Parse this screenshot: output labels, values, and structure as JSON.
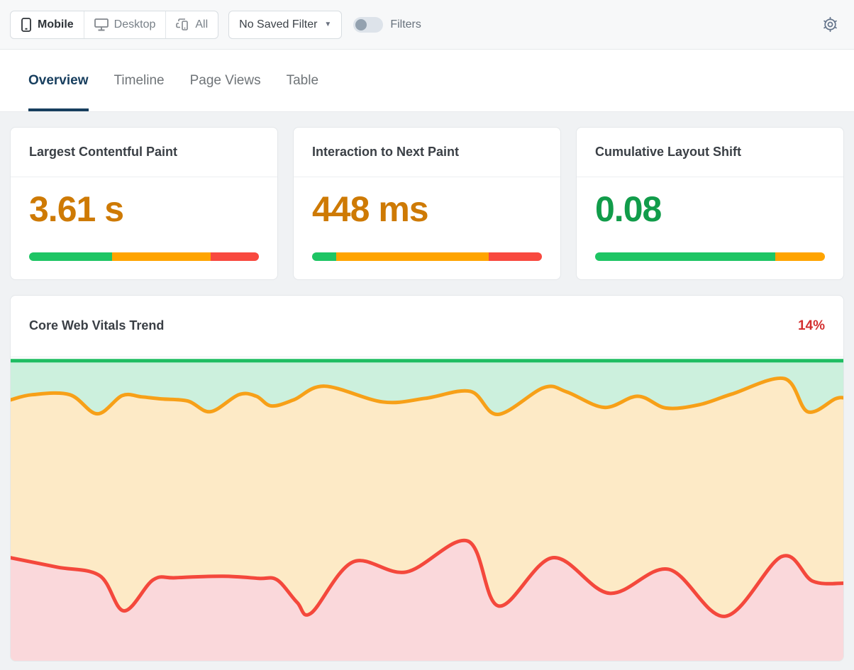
{
  "topbar": {
    "device_tabs": [
      {
        "label": "Mobile",
        "icon": "phone-icon",
        "active": true
      },
      {
        "label": "Desktop",
        "icon": "desktop-icon",
        "active": false
      },
      {
        "label": "All",
        "icon": "devices-icon",
        "active": false
      }
    ],
    "saved_filter": {
      "label": "No Saved Filter",
      "caret": "▼"
    },
    "filters_toggle": {
      "label": "Filters",
      "state": "off"
    },
    "settings_icon": "gear-icon"
  },
  "tabs": [
    {
      "label": "Overview",
      "active": true
    },
    {
      "label": "Timeline",
      "active": false
    },
    {
      "label": "Page Views",
      "active": false
    },
    {
      "label": "Table",
      "active": false
    }
  ],
  "threshold_colors": {
    "good": "#1ec564",
    "needs_improvement": "#ffa400",
    "poor": "#f8493f"
  },
  "metric_cards": [
    {
      "title": "Largest Contentful Paint",
      "value": "3.61 s",
      "value_color": "#ce7a04",
      "bar": {
        "good": 36,
        "needs_improvement": 43,
        "poor": 21
      }
    },
    {
      "title": "Interaction to Next Paint",
      "value": "448 ms",
      "value_color": "#ce7a04",
      "bar": {
        "good": 10.5,
        "needs_improvement": 66.5,
        "poor": 23
      }
    },
    {
      "title": "Cumulative Layout Shift",
      "value": "0.08",
      "value_color": "#119c4a",
      "bar": {
        "good": 78.5,
        "needs_improvement": 21.5,
        "poor": 0
      }
    }
  ],
  "trend_card": {
    "title": "Core Web Vitals Trend",
    "badge": "14%",
    "badge_color": "#d32f2f"
  },
  "chart_data": {
    "type": "area",
    "title": "Core Web Vitals Trend",
    "stacked": true,
    "grid": false,
    "legend": false,
    "x_axis": {
      "visible": false
    },
    "y_axis": {
      "visible": false,
      "range": [
        0,
        100
      ],
      "unit": "%"
    },
    "series": [
      {
        "name": "good",
        "fill": "#ccf0dd",
        "line_color": "#1fbd62"
      },
      {
        "name": "needs-improvement",
        "fill": "#fdeac6",
        "line_color": "#f7a018"
      },
      {
        "name": "poor",
        "fill": "#fad8db",
        "line_color": "#f4483c"
      }
    ],
    "good_top_line_pct_from_top": 1.1,
    "boundaries_pct": {
      "good_to_needs_improvement": [
        [
          0,
          14
        ],
        [
          2.6,
          12.3
        ],
        [
          7.1,
          12.3
        ],
        [
          10.4,
          18.6
        ],
        [
          13.4,
          12.6
        ],
        [
          15.7,
          13
        ],
        [
          18.1,
          13.7
        ],
        [
          21.3,
          14.4
        ],
        [
          24,
          17.9
        ],
        [
          27.4,
          12.3
        ],
        [
          29.5,
          12.8
        ],
        [
          31.3,
          16
        ],
        [
          34,
          14
        ],
        [
          37.7,
          9.5
        ],
        [
          44.7,
          14.7
        ],
        [
          49.8,
          13.5
        ],
        [
          55.2,
          11.2
        ],
        [
          58.5,
          18.8
        ],
        [
          64,
          10
        ],
        [
          66.8,
          11.4
        ],
        [
          71.3,
          16.5
        ],
        [
          75.3,
          12.8
        ],
        [
          78.7,
          16.7
        ],
        [
          82.7,
          15.6
        ],
        [
          86.6,
          12.1
        ],
        [
          92.9,
          7
        ],
        [
          95.7,
          17.9
        ],
        [
          99,
          13.7
        ],
        [
          100,
          13.3
        ]
      ],
      "needs_improvement_to_poor": [
        [
          0,
          66
        ],
        [
          5.6,
          69.1
        ],
        [
          10.7,
          71.9
        ],
        [
          13.6,
          83.5
        ],
        [
          17.1,
          73.3
        ],
        [
          19.8,
          72.6
        ],
        [
          25.5,
          72.1
        ],
        [
          29.8,
          72.8
        ],
        [
          32,
          73.3
        ],
        [
          34.4,
          80.7
        ],
        [
          36.1,
          84.2
        ],
        [
          41.1,
          67.4
        ],
        [
          47.5,
          70.7
        ],
        [
          54.9,
          60.5
        ],
        [
          58.6,
          81.9
        ],
        [
          65.1,
          66
        ],
        [
          71.9,
          77.7
        ],
        [
          79,
          69.8
        ],
        [
          85.8,
          85.3
        ],
        [
          92.6,
          65.6
        ],
        [
          96.3,
          73.7
        ],
        [
          100,
          74.4
        ]
      ]
    }
  }
}
